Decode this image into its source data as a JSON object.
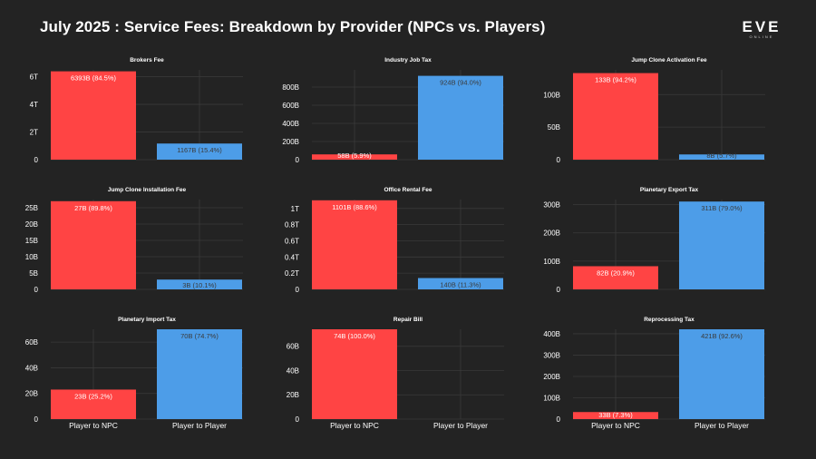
{
  "page_title": "July 2025 : Service Fees: Breakdown by Provider (NPCs vs. Players)",
  "logo": {
    "main": "EVE",
    "sub": "ONLINE"
  },
  "colors": {
    "npc": "#ff4444",
    "player": "#4d9de8",
    "background": "#232323",
    "grid": "#3a3a3a"
  },
  "chart_data": [
    {
      "type": "bar",
      "title": "Brokers Fee",
      "categories": [
        "Player to NPC",
        "Player to Player"
      ],
      "values": [
        6393,
        1167
      ],
      "bar_labels": [
        "6393B (84.5%)",
        "1167B (15.4%)"
      ],
      "unit": "B",
      "ylim": [
        0,
        6500
      ],
      "yticks": [
        0,
        2000,
        4000,
        6000
      ],
      "yticklabels": [
        "0",
        "2T",
        "4T",
        "6T"
      ],
      "show_xticklabels": false,
      "grid": true
    },
    {
      "type": "bar",
      "title": "Industry Job Tax",
      "categories": [
        "Player to NPC",
        "Player to Player"
      ],
      "values": [
        58,
        924
      ],
      "bar_labels": [
        "58B (5.9%)",
        "924B (94.0%)"
      ],
      "unit": "B",
      "ylim": [
        0,
        990
      ],
      "yticks": [
        0,
        200,
        400,
        600,
        800
      ],
      "yticklabels": [
        "0",
        "200B",
        "400B",
        "600B",
        "800B"
      ],
      "show_xticklabels": false,
      "grid": true
    },
    {
      "type": "bar",
      "title": "Jump Clone Activation Fee",
      "categories": [
        "Player to NPC",
        "Player to Player"
      ],
      "values": [
        133,
        8
      ],
      "bar_labels": [
        "133B (94.2%)",
        "8B (5.7%)"
      ],
      "unit": "B",
      "ylim": [
        0,
        138
      ],
      "yticks": [
        0,
        50,
        100
      ],
      "yticklabels": [
        "0",
        "50B",
        "100B"
      ],
      "show_xticklabels": false,
      "grid": true
    },
    {
      "type": "bar",
      "title": "Jump Clone Installation Fee",
      "categories": [
        "Player to NPC",
        "Player to Player"
      ],
      "values": [
        27,
        3
      ],
      "bar_labels": [
        "27B (89.8%)",
        "3B (10.1%)"
      ],
      "unit": "B",
      "ylim": [
        0,
        27.5
      ],
      "yticks": [
        0,
        5,
        10,
        15,
        20,
        25
      ],
      "yticklabels": [
        "0",
        "5B",
        "10B",
        "15B",
        "20B",
        "25B"
      ],
      "show_xticklabels": false,
      "grid": true
    },
    {
      "type": "bar",
      "title": "Office Rental Fee",
      "categories": [
        "Player to NPC",
        "Player to Player"
      ],
      "values": [
        1101,
        140
      ],
      "bar_labels": [
        "1101B (88.6%)",
        "140B (11.3%)"
      ],
      "unit": "B",
      "ylim": [
        0,
        1110
      ],
      "yticks": [
        0,
        200,
        400,
        600,
        800,
        1000
      ],
      "yticklabels": [
        "0",
        "0.2T",
        "0.4T",
        "0.6T",
        "0.8T",
        "1T"
      ],
      "show_xticklabels": false,
      "grid": true
    },
    {
      "type": "bar",
      "title": "Planetary Export Tax",
      "categories": [
        "Player to NPC",
        "Player to Player"
      ],
      "values": [
        82,
        311
      ],
      "bar_labels": [
        "82B (20.9%)",
        "311B (79.0%)"
      ],
      "unit": "B",
      "ylim": [
        0,
        318
      ],
      "yticks": [
        0,
        100,
        200,
        300
      ],
      "yticklabels": [
        "0",
        "100B",
        "200B",
        "300B"
      ],
      "show_xticklabels": false,
      "grid": true
    },
    {
      "type": "bar",
      "title": "Planetary Import Tax",
      "categories": [
        "Player to NPC",
        "Player to Player"
      ],
      "values": [
        23,
        70
      ],
      "bar_labels": [
        "23B (25.2%)",
        "70B (74.7%)"
      ],
      "unit": "B",
      "ylim": [
        0,
        70
      ],
      "yticks": [
        0,
        20,
        40,
        60
      ],
      "yticklabels": [
        "0",
        "20B",
        "40B",
        "60B"
      ],
      "show_xticklabels": true,
      "grid": true
    },
    {
      "type": "bar",
      "title": "Repair Bill",
      "categories": [
        "Player to NPC",
        "Player to Player"
      ],
      "values": [
        74,
        0
      ],
      "bar_labels": [
        "74B (100.0%)",
        ""
      ],
      "unit": "B",
      "ylim": [
        0,
        74
      ],
      "yticks": [
        0,
        20,
        40,
        60
      ],
      "yticklabels": [
        "0",
        "20B",
        "40B",
        "60B"
      ],
      "show_xticklabels": true,
      "grid": true
    },
    {
      "type": "bar",
      "title": "Reprocessing Tax",
      "categories": [
        "Player to NPC",
        "Player to Player"
      ],
      "values": [
        33,
        421
      ],
      "bar_labels": [
        "33B (7.3%)",
        "421B (92.6%)"
      ],
      "unit": "B",
      "ylim": [
        0,
        421
      ],
      "yticks": [
        0,
        100,
        200,
        300,
        400
      ],
      "yticklabels": [
        "0",
        "100B",
        "200B",
        "300B",
        "400B"
      ],
      "show_xticklabels": true,
      "grid": true
    }
  ]
}
